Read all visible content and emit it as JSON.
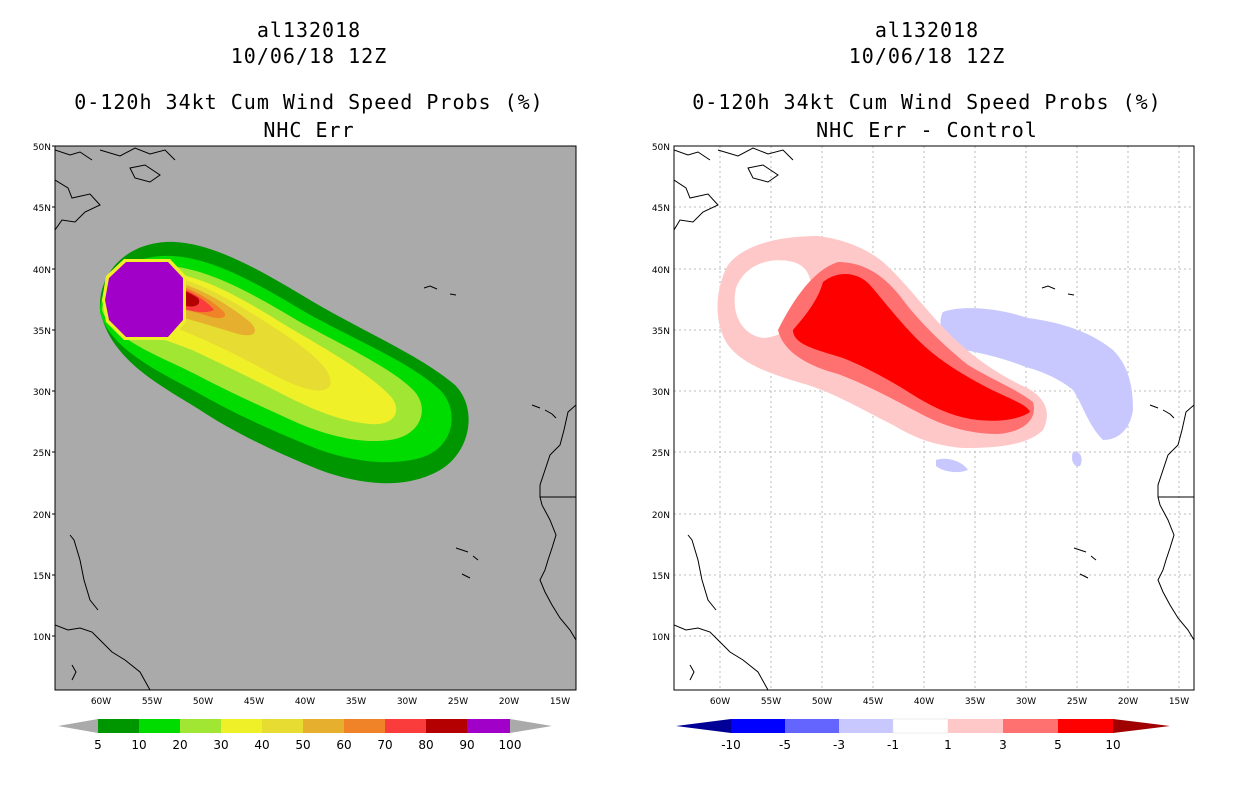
{
  "colors": {
    "land_bg": "#aaaaaa",
    "green_dark": "#009600",
    "green": "#00dc00",
    "green_light": "#a0e632",
    "yellow": "#f0f028",
    "yellow_dark": "#e6dc32",
    "gold": "#e6af2d",
    "orange": "#f08228",
    "red_light": "#fa3c3c",
    "dark_red": "#b40000",
    "purple": "#a000c8",
    "diff_pink_light": "#ffc8c8",
    "diff_pink": "#ff7070",
    "diff_red": "#ff0000",
    "diff_maroon": "#a00000",
    "diff_lavender": "#c8c8ff",
    "diff_blue_mid": "#6464ff",
    "diff_blue": "#0000ff",
    "diff_navy": "#000096"
  },
  "left": {
    "title_storm": "al132018",
    "title_date": "10/06/18 12Z",
    "title_product": "0-120h 34kt Cum Wind Speed Probs (%)",
    "title_sub": "NHC Err",
    "lat_labels": [
      "50N",
      "45N",
      "40N",
      "35N",
      "30N",
      "25N",
      "20N",
      "15N",
      "10N"
    ],
    "lon_labels": [
      "60W",
      "55W",
      "50W",
      "45W",
      "40W",
      "35W",
      "30W",
      "25W",
      "20W",
      "15W"
    ],
    "colorbar_labels": [
      "5",
      "10",
      "20",
      "30",
      "40",
      "50",
      "60",
      "70",
      "80",
      "90",
      "100"
    ]
  },
  "right": {
    "title_storm": "al132018",
    "title_date": "10/06/18 12Z",
    "title_product": "0-120h 34kt Cum Wind Speed Probs (%)",
    "title_sub": "NHC Err - Control",
    "lat_labels": [
      "50N",
      "45N",
      "40N",
      "35N",
      "30N",
      "25N",
      "20N",
      "15N",
      "10N"
    ],
    "lon_labels": [
      "60W",
      "55W",
      "50W",
      "45W",
      "40W",
      "35W",
      "30W",
      "25W",
      "20W",
      "15W"
    ],
    "colorbar_labels": [
      "-10",
      "-5",
      "-3",
      "-1",
      "1",
      "3",
      "5",
      "10"
    ]
  }
}
